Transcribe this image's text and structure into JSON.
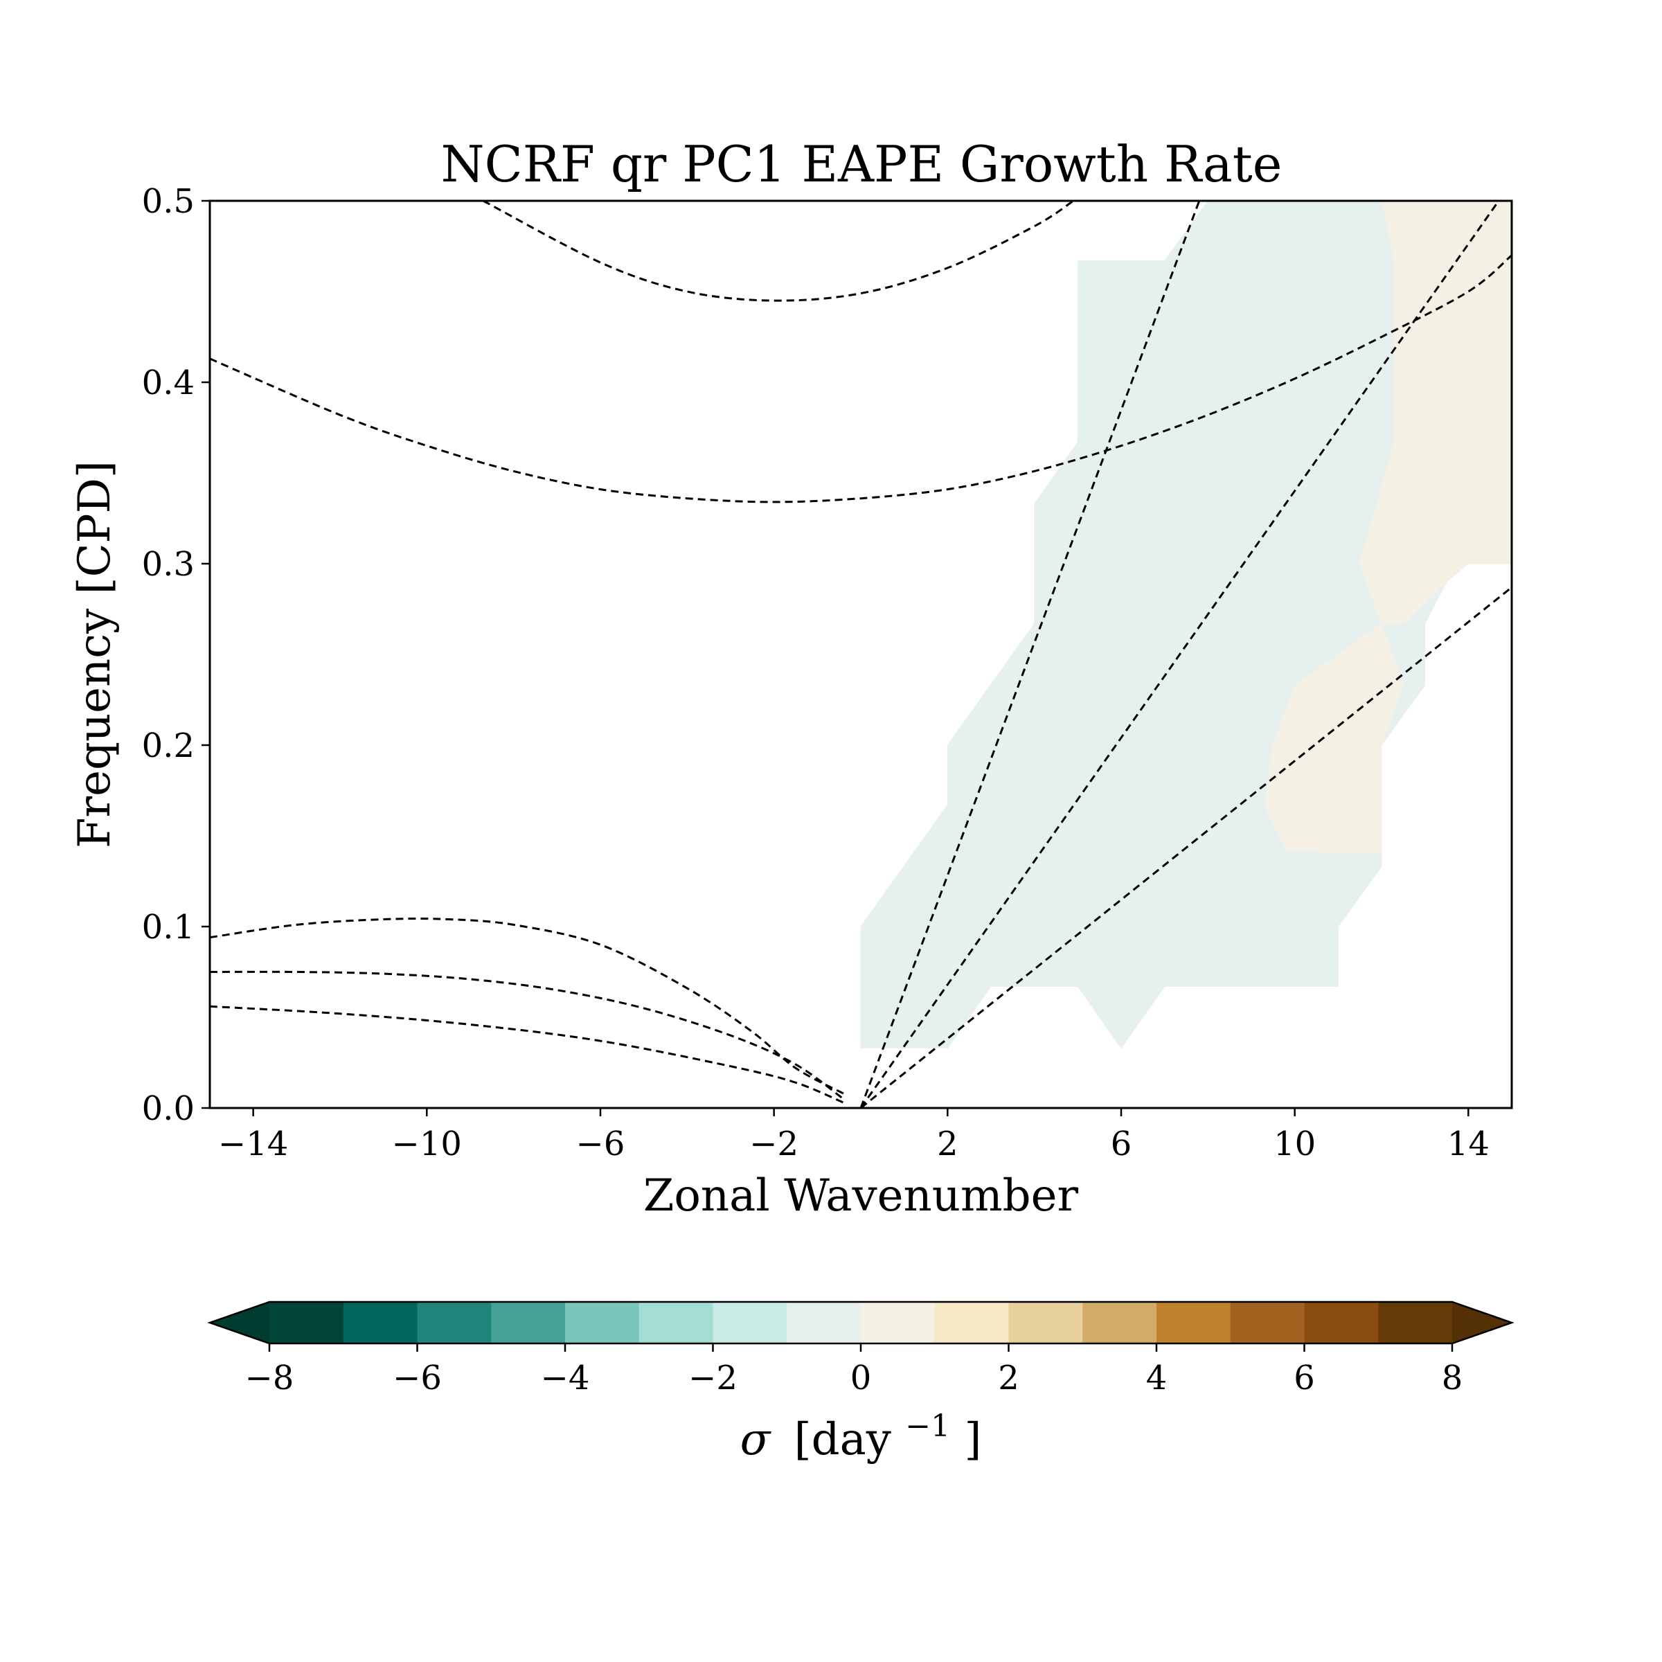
{
  "chart_data": {
    "type": "heatmap",
    "title": "NCRF qr PC1 EAPE Growth Rate",
    "xlabel": "Zonal Wavenumber",
    "ylabel": "Frequency [CPD]",
    "xlim": [
      -15,
      15
    ],
    "ylim": [
      0.0,
      0.5
    ],
    "xticks": [
      -14,
      -10,
      -6,
      -2,
      2,
      6,
      10,
      14
    ],
    "xtick_labels": [
      "−14",
      "−10",
      "−6",
      "−2",
      "2",
      "6",
      "10",
      "14"
    ],
    "yticks": [
      0.0,
      0.1,
      0.2,
      0.3,
      0.4,
      0.5
    ],
    "ytick_labels": [
      "0.0",
      "0.1",
      "0.2",
      "0.3",
      "0.4",
      "0.5"
    ],
    "grid": false,
    "filled_regions": [
      {
        "level": "-1 to 0",
        "color": "#e6f0ee",
        "polygon": [
          [
            0,
            0.033
          ],
          [
            0,
            0.1
          ],
          [
            2,
            0.167
          ],
          [
            2,
            0.2
          ],
          [
            4,
            0.267
          ],
          [
            4,
            0.333
          ],
          [
            5,
            0.367
          ],
          [
            5,
            0.467
          ],
          [
            7,
            0.467
          ],
          [
            8,
            0.5
          ],
          [
            12,
            0.5
          ],
          [
            12.3,
            0.467
          ],
          [
            12.3,
            0.367
          ],
          [
            11.5,
            0.3
          ],
          [
            12,
            0.267
          ],
          [
            12.5,
            0.267
          ],
          [
            13,
            0.29
          ],
          [
            13.5,
            0.29
          ],
          [
            13,
            0.267
          ],
          [
            13,
            0.233
          ],
          [
            12,
            0.2
          ],
          [
            12,
            0.133
          ],
          [
            11,
            0.1
          ],
          [
            11,
            0.067
          ],
          [
            7,
            0.067
          ],
          [
            6,
            0.033
          ],
          [
            5,
            0.067
          ],
          [
            3,
            0.067
          ],
          [
            2,
            0.033
          ]
        ]
      },
      {
        "level": "0 to 1",
        "color": "#f4f0e4",
        "polygon": [
          [
            12,
            0.5
          ],
          [
            15,
            0.5
          ],
          [
            15,
            0.3
          ],
          [
            14,
            0.3
          ],
          [
            13.5,
            0.29
          ],
          [
            12.5,
            0.267
          ],
          [
            12,
            0.267
          ],
          [
            11.5,
            0.3
          ],
          [
            12.3,
            0.367
          ],
          [
            12.3,
            0.467
          ]
        ]
      },
      {
        "level": "0 to 1",
        "color": "#f4f0e4",
        "polygon": [
          [
            10,
            0.233
          ],
          [
            9.5,
            0.2
          ],
          [
            9.3,
            0.167
          ],
          [
            9.8,
            0.142
          ],
          [
            12,
            0.14
          ],
          [
            12,
            0.2
          ],
          [
            12.5,
            0.233
          ],
          [
            12,
            0.267
          ],
          [
            11,
            0.25
          ]
        ]
      }
    ],
    "dispersion_curves": [
      {
        "style": "dashed",
        "x": [
          -8.7,
          -6,
          -4,
          -2,
          0,
          2,
          4,
          4.9
        ],
        "y": [
          0.5,
          0.466,
          0.45,
          0.445,
          0.449,
          0.463,
          0.486,
          0.5
        ]
      },
      {
        "style": "dashed",
        "x": [
          -15,
          -12,
          -10,
          -8,
          -6,
          -4,
          -2,
          0,
          2,
          4,
          6,
          8,
          10,
          12,
          14,
          15
        ],
        "y": [
          0.413,
          0.382,
          0.365,
          0.351,
          0.341,
          0.336,
          0.334,
          0.336,
          0.341,
          0.351,
          0.365,
          0.382,
          0.402,
          0.425,
          0.45,
          0.47
        ]
      },
      {
        "style": "dashed",
        "x": [
          -15,
          -13,
          -11,
          -9.5,
          -8,
          -6,
          -4,
          -2.5,
          -1.5,
          -0.4
        ],
        "y": [
          0.094,
          0.101,
          0.104,
          0.104,
          0.101,
          0.09,
          0.066,
          0.042,
          0.022,
          0.008
        ]
      },
      {
        "style": "dashed",
        "x": [
          -15,
          -13,
          -11,
          -9,
          -7,
          -5,
          -3,
          -1.5,
          -0.4
        ],
        "y": [
          0.075,
          0.075,
          0.074,
          0.071,
          0.065,
          0.055,
          0.04,
          0.024,
          0.005
        ]
      },
      {
        "style": "dashed",
        "x": [
          -15,
          -12,
          -9,
          -6,
          -3,
          -1.5,
          -0.4
        ],
        "y": [
          0.056,
          0.052,
          0.046,
          0.037,
          0.023,
          0.014,
          0.003
        ]
      },
      {
        "style": "dashed",
        "x": [
          0,
          7.8
        ],
        "y": [
          0.0,
          0.5
        ]
      },
      {
        "style": "dashed",
        "x": [
          0,
          14.7
        ],
        "y": [
          0.0,
          0.5
        ]
      },
      {
        "style": "dashed",
        "x": [
          0,
          15
        ],
        "y": [
          0.0,
          0.287
        ]
      }
    ],
    "colorbar": {
      "label": "σ [day⁻¹]",
      "label_symbol": "σ",
      "label_unit": "[day",
      "label_exp": "−1",
      "label_close": "]",
      "levels": [
        -8,
        -7,
        -6,
        -5,
        -4,
        -3,
        -2,
        -1,
        0,
        1,
        2,
        3,
        4,
        5,
        6,
        7,
        8
      ],
      "ticks": [
        -8,
        -6,
        -4,
        -2,
        0,
        2,
        4,
        6,
        8
      ],
      "tick_labels": [
        "−8",
        "−6",
        "−4",
        "−2",
        "0",
        "2",
        "4",
        "6",
        "8"
      ],
      "extend": "both",
      "under_color": "#003c30",
      "over_color": "#543005",
      "colors": [
        "#01443a",
        "#01665e",
        "#1f857c",
        "#45a196",
        "#79c5b9",
        "#a3ddd4",
        "#c9ebe5",
        "#e6f0ee",
        "#f4f0e4",
        "#f6e8c3",
        "#e7d09b",
        "#d4ab66",
        "#bf812d",
        "#a2621f",
        "#8a4d0f",
        "#663b07"
      ]
    }
  }
}
